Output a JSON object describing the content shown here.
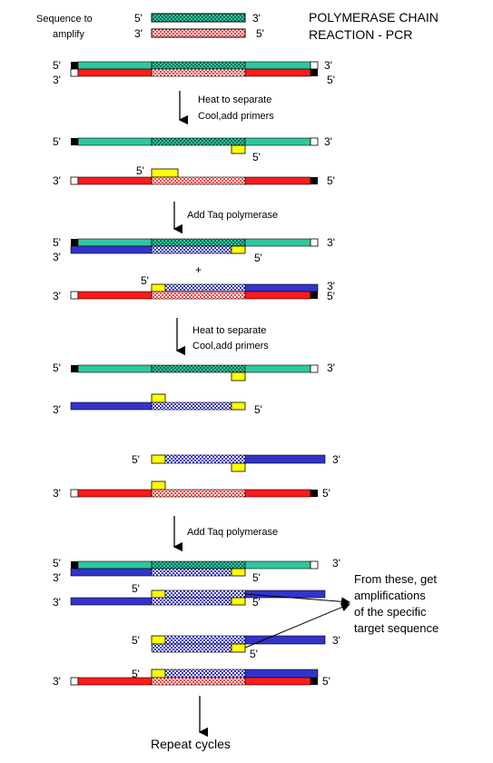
{
  "title": {
    "line1": "POLYMERASE CHAIN",
    "line2": "REACTION - PCR"
  },
  "legend": {
    "label_line1": "Sequence to",
    "label_line2": "amplify",
    "five_prime": "5'",
    "three_prime": "3'"
  },
  "steps": {
    "s1_line1": "Heat to separate",
    "s1_line2": "Cool,add primers",
    "s2": "Add Taq polymerase",
    "s3_line1": "Heat to separate",
    "s3_line2": "Cool,add primers",
    "s4": "Add Taq polymerase"
  },
  "plus": "+",
  "note": {
    "line1": "From these, get",
    "line2": "amplifications",
    "line3": "of the specific",
    "line4": "target sequence"
  },
  "repeat": "Repeat cycles",
  "ends": {
    "five": "5'",
    "three": "3'"
  },
  "colors": {
    "green_strand": "#2ec7a0",
    "green_target_bg": "#2ec7a0",
    "green_target_dot": "#0b6e55",
    "red_strand": "#ff1a1a",
    "red_target_bg": "#ff9999",
    "red_target_dot": "#ffffff",
    "blue_strand": "#3333cc",
    "blue_target_bg": "#ffffff",
    "blue_target_dot": "#3333cc",
    "primer": "#ffff00",
    "end_black": "#000000",
    "end_white": "#ffffff"
  }
}
